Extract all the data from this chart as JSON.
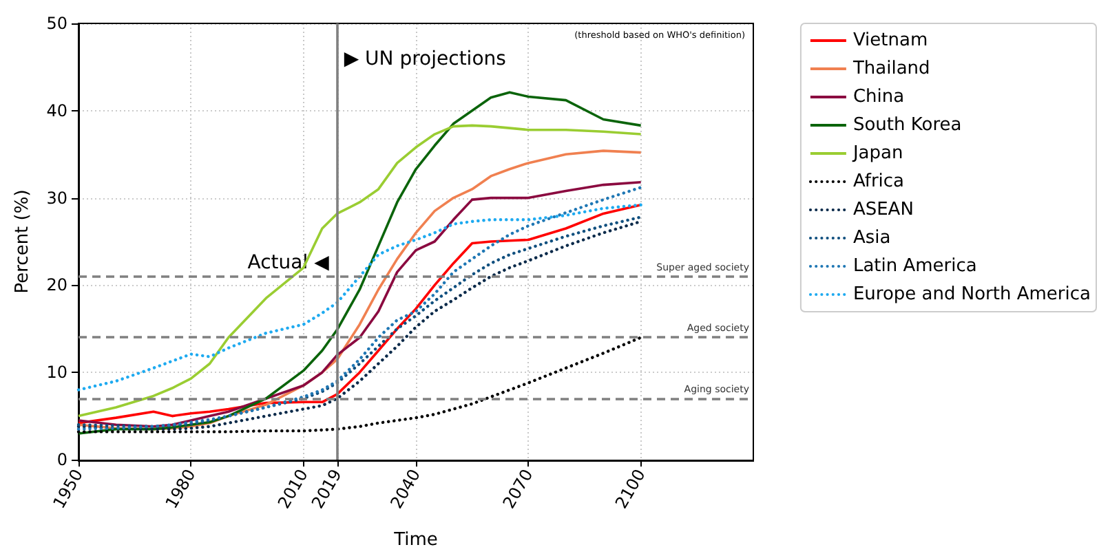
{
  "chart_data": {
    "type": "line",
    "xlabel": "Time",
    "ylabel": "Percent (%)",
    "x": [
      1950,
      1960,
      1970,
      1975,
      1980,
      1985,
      1990,
      2000,
      2010,
      2015,
      2019,
      2025,
      2030,
      2035,
      2040,
      2045,
      2050,
      2055,
      2060,
      2065,
      2070,
      2080,
      2090,
      2100
    ],
    "xlim": [
      1950,
      2130
    ],
    "xticks": [
      1950,
      1980,
      2010,
      2019,
      2040,
      2070,
      2100
    ],
    "ylim": [
      0,
      50
    ],
    "yticks": [
      0,
      10,
      20,
      30,
      40,
      50
    ],
    "grid": true,
    "legend": "right",
    "marker": "none",
    "series": [
      {
        "name": "Vietnam",
        "color": "#ff0000",
        "line_style": "solid",
        "values": [
          4.2,
          4.8,
          5.5,
          5,
          5.3,
          5.5,
          5.8,
          6.5,
          6.6,
          6.6,
          7.5,
          10,
          12.5,
          15,
          17.3,
          20,
          22.5,
          24.8,
          25,
          25.1,
          25.2,
          26.5,
          28.2,
          29.2
        ]
      },
      {
        "name": "Thailand",
        "color": "#f08050",
        "line_style": "solid",
        "values": [
          4,
          3.6,
          3.5,
          3.6,
          3.8,
          4.2,
          5,
          6.3,
          8.5,
          10,
          11.5,
          15.5,
          19.5,
          23,
          26,
          28.5,
          30,
          31,
          32.5,
          33.3,
          34,
          35,
          35.4,
          35.2
        ]
      },
      {
        "name": "China",
        "color": "#8b0a40",
        "line_style": "solid",
        "values": [
          4.5,
          4,
          3.8,
          4,
          4.5,
          5,
          5.5,
          7,
          8.5,
          10,
          12,
          14,
          17,
          21.5,
          24,
          25,
          27.5,
          29.8,
          30,
          30,
          30,
          30.8,
          31.5,
          31.8
        ]
      },
      {
        "name": "South Korea",
        "color": "#0b640b",
        "line_style": "solid",
        "values": [
          3,
          3.5,
          3.5,
          3.7,
          4,
          4.3,
          5,
          7,
          10.2,
          12.5,
          14.9,
          19.5,
          24.5,
          29.5,
          33.3,
          36,
          38.5,
          40,
          41.5,
          42.1,
          41.6,
          41.2,
          39,
          38.3
        ]
      },
      {
        "name": "Japan",
        "color": "#9acd32",
        "line_style": "solid",
        "values": [
          5,
          6,
          7.3,
          8.2,
          9.3,
          11,
          14,
          18.5,
          22,
          26.5,
          28.2,
          29.5,
          31,
          34,
          35.8,
          37.3,
          38.2,
          38.3,
          38.2,
          38,
          37.8,
          37.8,
          37.6,
          37.3
        ]
      },
      {
        "name": "Africa",
        "color": "#000000",
        "line_style": "dotted",
        "values": [
          3.2,
          3.2,
          3.2,
          3.2,
          3.2,
          3.2,
          3.2,
          3.3,
          3.3,
          3.4,
          3.5,
          3.8,
          4.2,
          4.5,
          4.8,
          5.2,
          5.8,
          6.4,
          7.2,
          8,
          8.8,
          10.5,
          12.2,
          14
        ]
      },
      {
        "name": "ASEAN",
        "color": "#0a2a4a",
        "line_style": "dotted",
        "values": [
          3.8,
          3.6,
          3.5,
          3.5,
          3.6,
          3.8,
          4.2,
          5,
          5.8,
          6.2,
          7,
          9,
          11,
          13,
          15.2,
          17,
          18.3,
          19.7,
          21,
          22,
          22.8,
          24.5,
          26,
          27.3
        ]
      },
      {
        "name": "Asia",
        "color": "#11507f",
        "line_style": "dotted",
        "values": [
          4,
          3.9,
          3.8,
          3.9,
          4.1,
          4.5,
          5,
          6,
          7,
          7.8,
          8.8,
          11,
          13,
          15,
          16.5,
          18.2,
          19.7,
          21.2,
          22.5,
          23.5,
          24.2,
          25.6,
          26.8,
          27.8
        ]
      },
      {
        "name": "Latin America",
        "color": "#1f77b4",
        "line_style": "dotted",
        "values": [
          3.5,
          3.6,
          3.8,
          4,
          4.3,
          4.6,
          5,
          6,
          7.2,
          8,
          9,
          11.5,
          14,
          16,
          17,
          19,
          21.5,
          23,
          24.5,
          25.8,
          26.8,
          28.3,
          29.8,
          31.2
        ]
      },
      {
        "name": "Europe and North America",
        "color": "#1eaaf0",
        "line_style": "dotted",
        "values": [
          8,
          9,
          10.5,
          11.3,
          12.1,
          11.8,
          12.8,
          14.5,
          15.5,
          16.8,
          18,
          21,
          23.5,
          24.5,
          25.2,
          26,
          27,
          27.3,
          27.5,
          27.5,
          27.5,
          28,
          28.8,
          29.2
        ]
      }
    ],
    "ref_lines": [
      {
        "axis": "x",
        "value": 2019,
        "color": "#808080",
        "line_style": "solid"
      },
      {
        "axis": "y",
        "value": 21,
        "label": "Super aged society",
        "color": "#808080",
        "line_style": "dashed"
      },
      {
        "axis": "y",
        "value": 14,
        "label": "Aged society",
        "color": "#808080",
        "line_style": "dashed"
      },
      {
        "axis": "y",
        "value": 7,
        "label": "Aging society",
        "color": "#808080",
        "line_style": "dashed"
      }
    ],
    "annotations": [
      "Actual ◀",
      "▶ UN projections",
      "(threshold based on WHO's definition)"
    ]
  }
}
